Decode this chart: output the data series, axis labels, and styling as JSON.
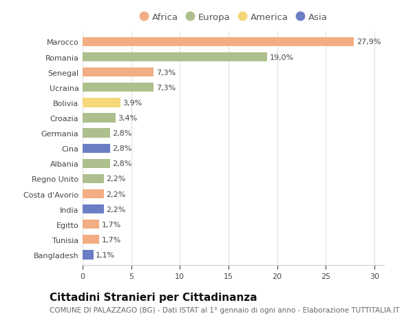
{
  "countries": [
    "Marocco",
    "Romania",
    "Senegal",
    "Ucraina",
    "Bolivia",
    "Croazia",
    "Germania",
    "Cina",
    "Albania",
    "Regno Unito",
    "Costa d'Avorio",
    "India",
    "Egitto",
    "Tunisia",
    "Bangladesh"
  ],
  "values": [
    27.9,
    19.0,
    7.3,
    7.3,
    3.9,
    3.4,
    2.8,
    2.8,
    2.8,
    2.2,
    2.2,
    2.2,
    1.7,
    1.7,
    1.1
  ],
  "labels": [
    "27,9%",
    "19,0%",
    "7,3%",
    "7,3%",
    "3,9%",
    "3,4%",
    "2,8%",
    "2,8%",
    "2,8%",
    "2,2%",
    "2,2%",
    "2,2%",
    "1,7%",
    "1,7%",
    "1,1%"
  ],
  "continents": [
    "Africa",
    "Europa",
    "Africa",
    "Europa",
    "America",
    "Europa",
    "Europa",
    "Asia",
    "Europa",
    "Europa",
    "Africa",
    "Asia",
    "Africa",
    "Africa",
    "Asia"
  ],
  "continent_colors": {
    "Africa": "#F2AE82",
    "Europa": "#ADBF8C",
    "America": "#F5D87A",
    "Asia": "#6B7EC5"
  },
  "legend_order": [
    "Africa",
    "Europa",
    "America",
    "Asia"
  ],
  "title": "Cittadini Stranieri per Cittadinanza",
  "subtitle": "COMUNE DI PALAZZAGO (BG) - Dati ISTAT al 1° gennaio di ogni anno - Elaborazione TUTTITALIA.IT",
  "xlim": [
    0,
    31
  ],
  "xticks": [
    0,
    5,
    10,
    15,
    20,
    25,
    30
  ],
  "background_color": "#ffffff",
  "plot_background": "#ffffff",
  "grid_color": "#e0e0e0",
  "bar_height": 0.6,
  "title_fontsize": 11,
  "subtitle_fontsize": 7.5,
  "label_fontsize": 8,
  "tick_fontsize": 8,
  "legend_fontsize": 9.5
}
